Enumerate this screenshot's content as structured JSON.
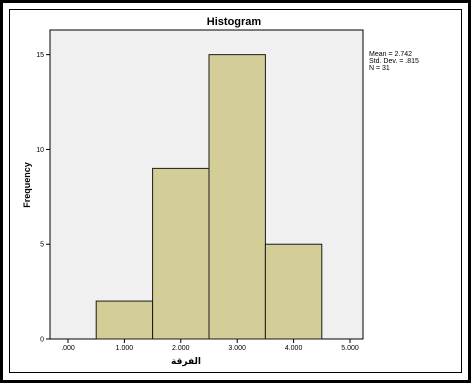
{
  "chart_data": {
    "type": "bar",
    "title": "Histogram",
    "xlabel": "الفرقة",
    "ylabel": "Frequency",
    "x_ticks": [
      ".000",
      "1.000",
      "2.000",
      "3.000",
      "4.000",
      "5.000"
    ],
    "x_range": [
      0,
      5
    ],
    "y_ticks": [
      0,
      5,
      10,
      15
    ],
    "ylim": [
      0,
      16.3
    ],
    "bins": [
      {
        "start": 0.5,
        "end": 1.5,
        "value": 2
      },
      {
        "start": 1.5,
        "end": 2.5,
        "value": 9
      },
      {
        "start": 2.5,
        "end": 3.5,
        "value": 15
      },
      {
        "start": 3.5,
        "end": 4.5,
        "value": 5
      }
    ],
    "stats": {
      "mean": "Mean = 2.742",
      "std_dev": "Std. Dev. = .815",
      "n": "N = 31"
    },
    "grid": false,
    "legend": "top-right"
  },
  "colors": {
    "plot_background": "#f0f0f0",
    "bar_fill": "#d3ce97",
    "bar_stroke": "#1a1a1a",
    "frame": "#000000"
  }
}
